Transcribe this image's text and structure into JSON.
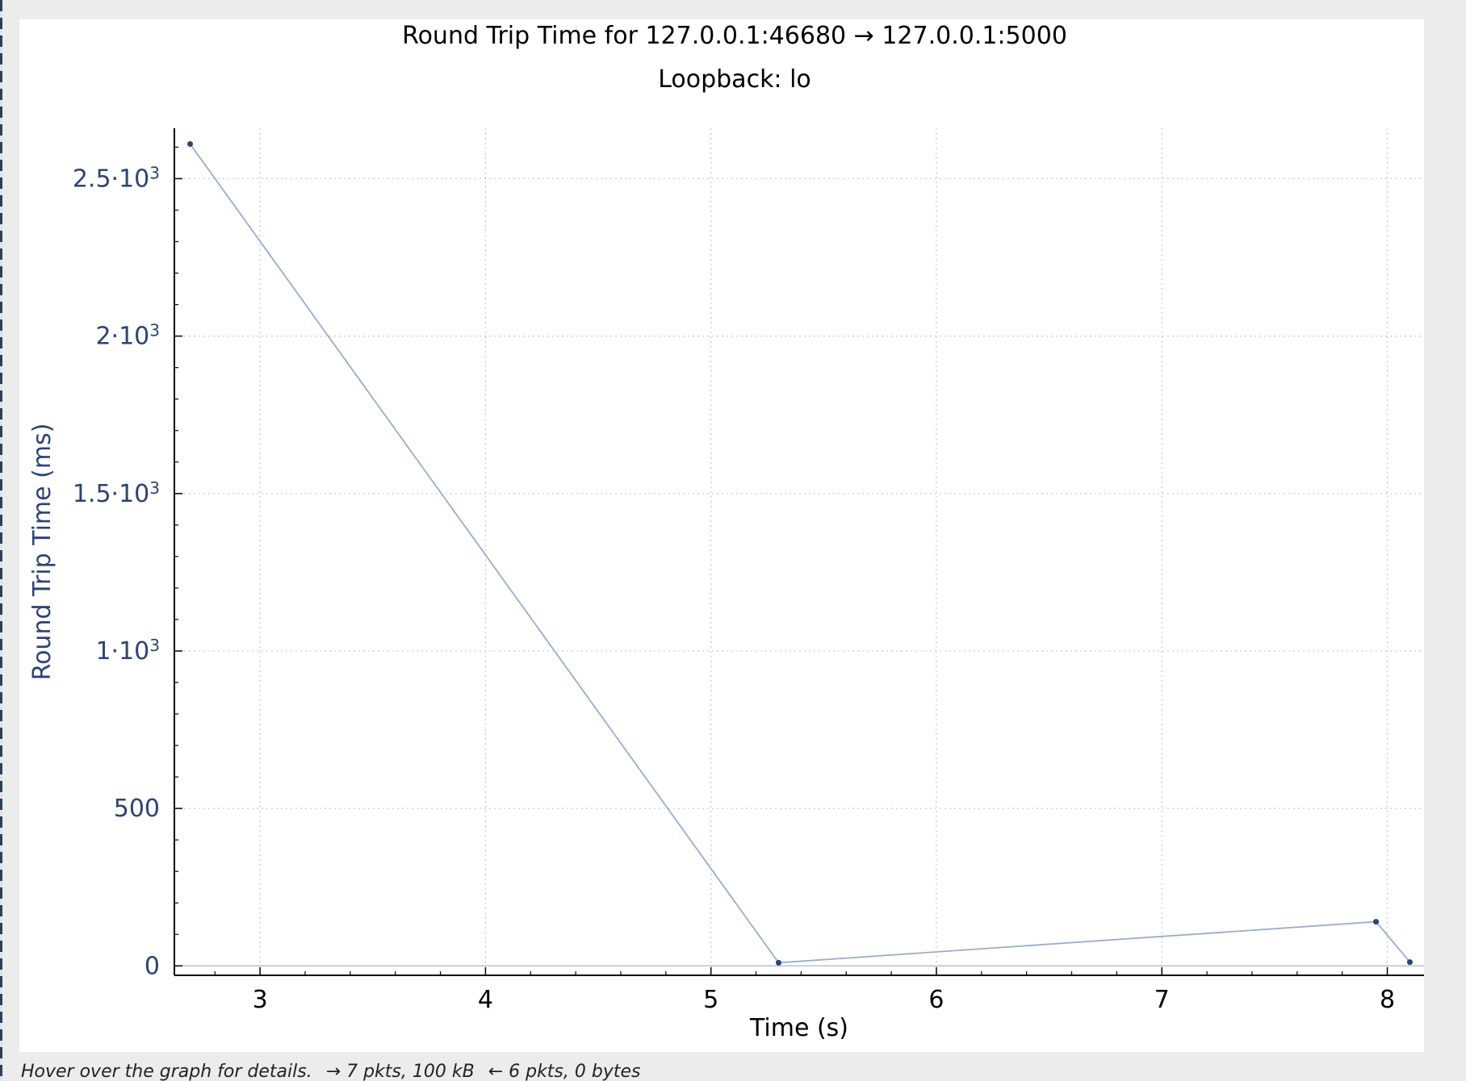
{
  "status": {
    "hint": "Hover over the graph for details.",
    "forward": "→ 7 pkts, 100 kB",
    "reverse": "← 6 pkts, 0 bytes"
  },
  "colors": {
    "line": "#9aaccc",
    "marker": "#2c4373",
    "y_axis_text": "#2c4373",
    "grid": "#c8c8c8",
    "axis": "#000000"
  },
  "chart_data": {
    "type": "line",
    "title": "Round Trip Time for 127.0.0.1:46680 → 127.0.0.1:5000",
    "subtitle": "Loopback: lo",
    "xlabel": "Time (s)",
    "ylabel": "Round Trip Time (ms)",
    "xlim": [
      2.62,
      8.17
    ],
    "ylim": [
      -30,
      2660
    ],
    "x_ticks": [
      3,
      4,
      5,
      6,
      7,
      8
    ],
    "x_tick_labels": [
      "3",
      "4",
      "5",
      "6",
      "7",
      "8"
    ],
    "y_ticks": [
      0,
      500,
      1000,
      1500,
      2000,
      2500
    ],
    "y_tick_labels": [
      {
        "mantissa": "0",
        "exp": ""
      },
      {
        "mantissa": "500",
        "exp": ""
      },
      {
        "mantissa": "1·10",
        "exp": "3"
      },
      {
        "mantissa": "1.5·10",
        "exp": "3"
      },
      {
        "mantissa": "2·10",
        "exp": "3"
      },
      {
        "mantissa": "2.5·10",
        "exp": "3"
      }
    ],
    "grid": true,
    "series": [
      {
        "x": [
          2.69,
          5.3,
          7.95,
          8.1
        ],
        "y": [
          2610,
          10,
          140,
          12
        ]
      }
    ]
  }
}
